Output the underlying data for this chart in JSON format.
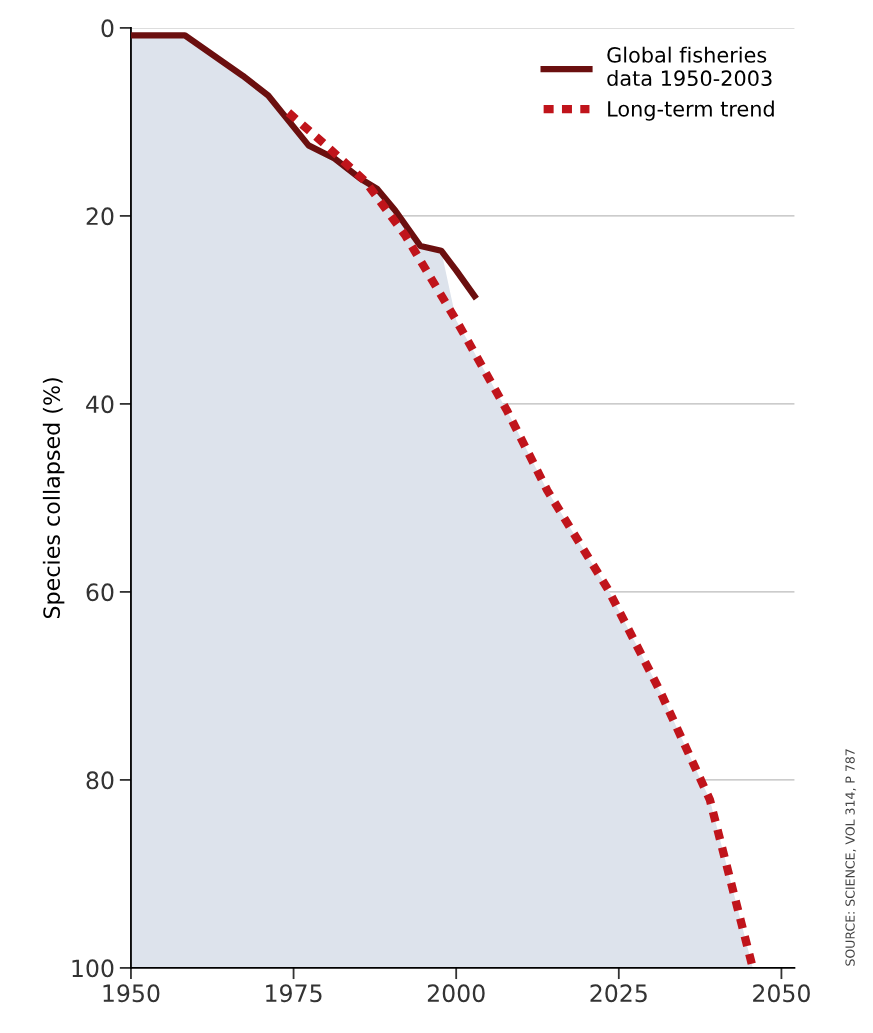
{
  "chart_data": {
    "type": "line",
    "ylabel": "Species collapsed (%)",
    "xlim": [
      1950,
      2052
    ],
    "xticks": [
      1950,
      1975,
      2000,
      2025,
      2050
    ],
    "ylim": [
      100,
      0
    ],
    "yticks": [
      0,
      20,
      40,
      60,
      80,
      100
    ],
    "grid": "y",
    "legend": "top right",
    "series": [
      {
        "type": "area",
        "color": "#dde3ec",
        "x": [
          1950,
          1950,
          1958.3,
          1967.2,
          1971.1,
          1977.3,
          1981.3,
          1985.2,
          1987.8,
          1990.6,
          1994.5,
          1997.7,
          2000,
          2007.8,
          2014,
          2023.4,
          2031.3,
          2039,
          2045.6
        ],
        "values": [
          100,
          0.8,
          0.8,
          5.1,
          7.2,
          12.5,
          13.9,
          16,
          17.1,
          19.4,
          23.2,
          23.7,
          31.1,
          40.7,
          49.2,
          59.8,
          70.5,
          82.1,
          100
        ]
      },
      {
        "name": "Global fisheries\ndata 1950-2003",
        "color": "#6b0f0f",
        "line_style": "solid",
        "x": [
          1950,
          1958.3,
          1967.2,
          1971.1,
          1977.3,
          1981.3,
          1985.2,
          1987.8,
          1990.6,
          1994.5,
          1997.7,
          2000,
          2003.1
        ],
        "values": [
          0.8,
          0.8,
          5.1,
          7.2,
          12.5,
          13.9,
          16,
          17.1,
          19.4,
          23.2,
          23.7,
          25.8,
          28.8
        ]
      },
      {
        "name": "Long-term trend",
        "color": "#c0141b",
        "line_style": "dashed",
        "x": [
          1974.2,
          1980,
          1986,
          1992.2,
          2000,
          2007.8,
          2014,
          2023.4,
          2031.3,
          2039,
          2045.6
        ],
        "values": [
          9,
          12.5,
          16.3,
          22.1,
          31.1,
          40.7,
          49.2,
          59.8,
          70.5,
          82.1,
          100
        ]
      }
    ],
    "annotations": [
      "SOURCE: SCIENCE, VOL 314, P 787"
    ]
  }
}
